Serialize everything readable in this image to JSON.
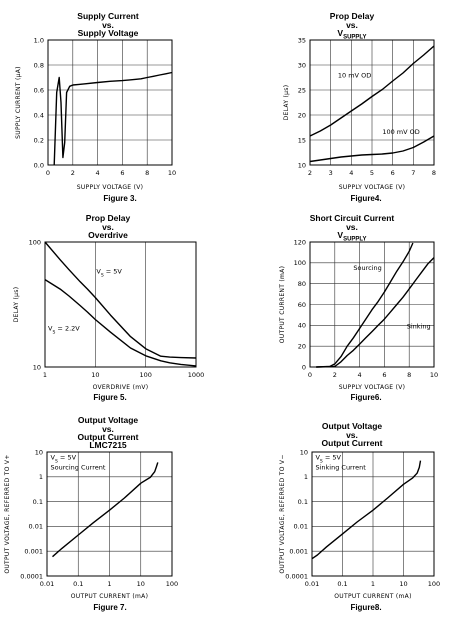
{
  "chart_data": [
    {
      "type": "line",
      "title": "Supply Current",
      "subtitle_lines": [
        "Supply Voltage"
      ],
      "vs_label": "vs.",
      "figure": "Figure 3.",
      "xlabel": "SUPPLY VOLTAGE (V)",
      "ylabel": "SUPPLY CURRENT (μA)",
      "x_scale": "linear",
      "y_scale": "linear",
      "xlim": [
        0,
        10
      ],
      "ylim": [
        0,
        1.0
      ],
      "xticks": [
        0,
        2,
        4,
        6,
        8,
        10
      ],
      "xtick_labels": [
        "0",
        "2",
        "4",
        "6",
        "8",
        "10"
      ],
      "yticks": [
        0,
        0.2,
        0.4,
        0.6,
        0.8,
        1.0
      ],
      "ytick_labels": [
        "0.0",
        "0.2",
        "0.4",
        "0.6",
        "0.8",
        "1.0"
      ],
      "grid": true,
      "series": [
        {
          "name": "",
          "x": [
            0.5,
            0.7,
            0.9,
            1.05,
            1.2,
            1.35,
            1.5,
            1.75,
            2.0,
            2.5,
            3,
            4,
            5,
            6,
            7,
            7.5,
            8,
            8.5,
            9,
            9.5,
            10
          ],
          "y": [
            0.0,
            0.58,
            0.7,
            0.5,
            0.06,
            0.18,
            0.58,
            0.63,
            0.64,
            0.645,
            0.65,
            0.66,
            0.67,
            0.675,
            0.685,
            0.69,
            0.7,
            0.71,
            0.72,
            0.73,
            0.74
          ]
        }
      ],
      "annotations": []
    },
    {
      "type": "line",
      "title": "Prop Delay",
      "subtitle_lines": [
        "V",
        "SUPPLY"
      ],
      "vs_label": "vs.",
      "figure": "Figure4.",
      "xlabel": "SUPPLY VOLTAGE (V)",
      "ylabel": "DELAY (μs)",
      "x_scale": "linear",
      "y_scale": "linear",
      "xlim": [
        2,
        8
      ],
      "ylim": [
        10,
        35
      ],
      "xticks": [
        2,
        3,
        4,
        5,
        6,
        7,
        8
      ],
      "xtick_labels": [
        "2",
        "3",
        "4",
        "5",
        "6",
        "7",
        "8"
      ],
      "yticks": [
        10,
        15,
        20,
        25,
        30,
        35
      ],
      "ytick_labels": [
        "10",
        "15",
        "20",
        "25",
        "30",
        "35"
      ],
      "grid": true,
      "series": [
        {
          "name": "",
          "x": [
            2,
            2.5,
            3,
            3.5,
            4,
            4.5,
            5,
            5.5,
            6,
            6.5,
            7,
            7.5,
            8
          ],
          "y": [
            15.8,
            16.8,
            18.0,
            19.4,
            20.8,
            22.2,
            23.7,
            25.1,
            26.8,
            28.4,
            30.3,
            32.0,
            33.8
          ]
        },
        {
          "name": "",
          "x": [
            2,
            2.5,
            3,
            3.5,
            4,
            4.5,
            5,
            5.5,
            6,
            6.5,
            7,
            7.5,
            8
          ],
          "y": [
            10.7,
            11.0,
            11.3,
            11.6,
            11.8,
            12.0,
            12.1,
            12.2,
            12.4,
            12.8,
            13.5,
            14.6,
            15.8
          ]
        }
      ],
      "annotations": [
        {
          "text": "10 mV OD",
          "x": 3.35,
          "y": 27.5
        },
        {
          "text": "100 mV OD",
          "x": 5.5,
          "y": 16.2
        }
      ]
    },
    {
      "type": "line",
      "title": "Prop Delay",
      "subtitle_lines": [
        "Overdrive"
      ],
      "vs_label": "vs.",
      "figure": "Figure 5.",
      "xlabel": "OVERDRIVE (mV)",
      "ylabel": "DELAY (μs)",
      "x_scale": "log",
      "y_scale": "log",
      "xlim": [
        1,
        1000
      ],
      "ylim": [
        10,
        100
      ],
      "xticks": [
        1,
        10,
        100,
        1000
      ],
      "xtick_labels": [
        "1",
        "10",
        "100",
        "1000"
      ],
      "yticks": [
        10,
        100
      ],
      "ytick_labels": [
        "10",
        "100"
      ],
      "grid": true,
      "series": [
        {
          "name": "",
          "x": [
            1,
            2,
            3,
            5,
            7,
            10,
            20,
            50,
            100,
            200,
            300,
            500,
            1000
          ],
          "y": [
            100,
            72,
            60,
            48,
            42,
            36,
            26,
            17.5,
            14,
            12.2,
            12.0,
            11.9,
            11.8
          ]
        },
        {
          "name": "",
          "x": [
            1,
            2,
            3,
            5,
            7,
            10,
            20,
            50,
            100,
            200,
            300,
            500,
            1000
          ],
          "y": [
            50,
            42,
            37,
            31,
            27.5,
            24,
            19,
            14.2,
            12.3,
            11.2,
            10.8,
            10.5,
            10.2
          ]
        }
      ],
      "annotations": [
        {
          "text": "V",
          "sub": "S",
          "rest": " = 5V",
          "x": 10.5,
          "y": 56
        },
        {
          "text": "V",
          "sub": "S",
          "rest": " = 2.2V",
          "x": 1.15,
          "y": 19.5
        }
      ]
    },
    {
      "type": "line",
      "title": "Short Circuit Current",
      "subtitle_lines": [
        "V",
        "SUPPLY"
      ],
      "vs_label": "vs.",
      "figure": "Figure6.",
      "xlabel": "SUPPLY VOLTAGE (V)",
      "ylabel": "OUTPUT CURRENT (mA)",
      "x_scale": "linear",
      "y_scale": "linear",
      "xlim": [
        0,
        10
      ],
      "ylim": [
        0,
        120
      ],
      "xticks": [
        0,
        2,
        4,
        6,
        8,
        10
      ],
      "xtick_labels": [
        "0",
        "2",
        "4",
        "6",
        "8",
        "10"
      ],
      "yticks": [
        0,
        20,
        40,
        60,
        80,
        100,
        120
      ],
      "ytick_labels": [
        "0",
        "20",
        "40",
        "60",
        "80",
        "100",
        "120"
      ],
      "grid": true,
      "series": [
        {
          "name": "",
          "x": [
            0.5,
            1.6,
            2.0,
            2.5,
            3,
            3.5,
            4,
            4.5,
            5,
            5.5,
            6,
            6.5,
            7,
            7.5,
            8,
            8.3
          ],
          "y": [
            0,
            0.5,
            3,
            10,
            20,
            28,
            37,
            46,
            55,
            63,
            72,
            82,
            92,
            101,
            111,
            119
          ]
        },
        {
          "name": "",
          "x": [
            0.5,
            2.0,
            2.5,
            3,
            3.5,
            4,
            4.5,
            5,
            5.5,
            6,
            6.5,
            7,
            7.5,
            8,
            8.5,
            9,
            9.5,
            10
          ],
          "y": [
            0,
            0.5,
            5,
            11,
            16,
            22,
            28,
            34,
            40,
            46,
            53,
            60,
            67,
            75,
            83,
            91,
            99,
            105
          ]
        }
      ],
      "annotations": [
        {
          "text": "Sourcing",
          "x": 3.5,
          "y": 93
        },
        {
          "text": "Sinking",
          "x": 7.8,
          "y": 37
        }
      ]
    },
    {
      "type": "line",
      "title": "Output Voltage",
      "subtitle_lines": [
        "Output Current",
        "LMC7215"
      ],
      "vs_label": "vs.",
      "figure": "Figure 7.",
      "xlabel": "OUTPUT CURRENT (mA)",
      "ylabel": "OUTPUT VOLTAGE, REFERRED TO V+",
      "x_scale": "log",
      "y_scale": "log",
      "xlim": [
        0.01,
        100
      ],
      "ylim": [
        0.0001,
        10
      ],
      "xticks": [
        0.01,
        0.1,
        1,
        10,
        100
      ],
      "xtick_labels": [
        "0.01",
        "0.1",
        "1",
        "10",
        "100"
      ],
      "yticks": [
        0.0001,
        0.001,
        0.01,
        0.1,
        1,
        10
      ],
      "ytick_labels": [
        "0.0001",
        "0.001",
        "0.01",
        "0.1",
        "1",
        "10"
      ],
      "grid": true,
      "series": [
        {
          "name": "",
          "x": [
            0.015,
            0.03,
            0.1,
            0.3,
            1,
            3,
            10,
            20,
            28,
            32,
            35
          ],
          "y": [
            0.0006,
            0.0013,
            0.0045,
            0.014,
            0.045,
            0.14,
            0.55,
            0.95,
            1.6,
            2.6,
            3.8
          ]
        }
      ],
      "annotations": [
        {
          "text": "V",
          "sub": "S",
          "rest": " = 5V",
          "x": 0.013,
          "y": 5
        },
        {
          "text": "Sourcing Current",
          "x": 0.013,
          "y": 2
        }
      ]
    },
    {
      "type": "line",
      "title": "Output Voltage",
      "subtitle_lines": [
        "Output Current"
      ],
      "vs_label": "vs.",
      "figure": "Figure8.",
      "xlabel": "OUTPUT CURRENT (mA)",
      "ylabel": "OUTPUT VOLTAGE, REFERRED TO V−",
      "x_scale": "log",
      "y_scale": "log",
      "xlim": [
        0.01,
        100
      ],
      "ylim": [
        0.0001,
        10
      ],
      "xticks": [
        0.01,
        0.1,
        1,
        10,
        100
      ],
      "xtick_labels": [
        "0.01",
        "0.1",
        "1",
        "10",
        "100"
      ],
      "yticks": [
        0.0001,
        0.001,
        0.01,
        0.1,
        1,
        10
      ],
      "ytick_labels": [
        "0.0001",
        "0.001",
        "0.01",
        "0.1",
        "1",
        "10"
      ],
      "grid": true,
      "series": [
        {
          "name": "",
          "x": [
            0.01,
            0.015,
            0.03,
            0.1,
            0.3,
            1,
            3,
            10,
            20,
            28,
            33,
            36
          ],
          "y": [
            0.0005,
            0.0007,
            0.0015,
            0.005,
            0.015,
            0.045,
            0.14,
            0.5,
            0.9,
            1.4,
            2.4,
            4.5
          ]
        }
      ],
      "annotations": [
        {
          "text": "V",
          "sub": "S",
          "rest": " = 5V",
          "x": 0.013,
          "y": 5
        },
        {
          "text": "Sinking Current",
          "x": 0.013,
          "y": 2
        }
      ]
    }
  ]
}
